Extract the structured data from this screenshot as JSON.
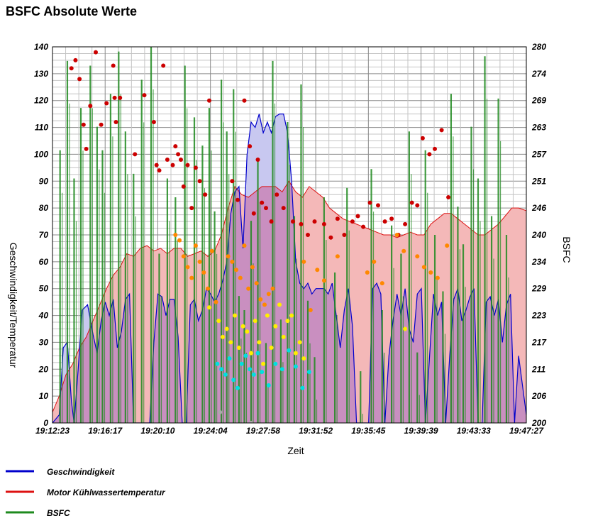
{
  "chart_data": {
    "type": "area",
    "title": "BSFC Absolute Werte",
    "xlabel": "Zeit",
    "ylabel_left": "Geschwindigkeit/Temperatur",
    "ylabel_right": "BSFC",
    "x_ticks": [
      "19:12:23",
      "19:16:17",
      "19:20:10",
      "19:24:04",
      "19:27:58",
      "19:31:52",
      "19:35:45",
      "19:39:39",
      "19:43:33",
      "19:47:27"
    ],
    "y_left_ticks": [
      "0",
      "10",
      "20",
      "30",
      "40",
      "50",
      "60",
      "70",
      "80",
      "90",
      "100",
      "110",
      "120",
      "130",
      "140"
    ],
    "y_right_ticks": [
      "200",
      "206",
      "211",
      "217",
      "223",
      "229",
      "234",
      "240",
      "246",
      "251",
      "257",
      "263",
      "269",
      "274",
      "280"
    ],
    "ylim_left": [
      0,
      140
    ],
    "ylim_right": [
      200,
      280
    ],
    "grid": true,
    "legend_position": "bottom-left",
    "colors": {
      "speed": "#0000cc",
      "speed_fill": "#c8c8f0",
      "coolant": "#dd1111",
      "coolant_fill": "#f4b8b8",
      "overlap_fill": "#c98fc0",
      "bsfc": "#1e8a1e",
      "pt_red": "#cc0000",
      "pt_orange": "#ff8800",
      "pt_yellow": "#ffee00",
      "pt_cyan": "#00e0e0"
    },
    "series": [
      {
        "name": "Geschwindigkeit",
        "x_minutes": [
          0,
          0.5,
          0.8,
          1.1,
          1.4,
          1.6,
          1.9,
          2.2,
          2.6,
          3.0,
          3.3,
          3.6,
          3.9,
          4.2,
          4.5,
          4.8,
          5.1,
          5.4,
          5.7,
          6.0,
          6.3,
          6.6,
          6.9,
          7.2,
          7.5,
          7.8,
          8.1,
          8.4,
          8.7,
          9.0,
          9.3,
          9.6,
          9.9,
          10.2,
          10.5,
          10.8,
          11.1,
          11.4,
          11.7,
          12.0,
          12.3,
          12.6,
          12.9,
          13.2,
          13.5,
          13.8,
          14.1,
          14.4,
          14.7,
          15.0,
          15.3,
          15.6,
          15.9,
          16.2,
          16.5,
          16.8,
          17.1,
          17.4,
          17.7,
          18.0,
          18.3,
          18.6,
          18.9,
          19.2,
          19.5,
          19.8,
          20.1,
          20.4,
          20.7,
          21.0,
          21.3,
          21.6,
          21.9,
          22.2,
          22.5,
          22.8,
          23.1,
          23.4,
          23.7,
          24.0,
          24.3,
          24.6,
          24.9,
          25.2,
          25.5,
          25.8,
          26.1,
          26.4,
          26.7,
          27.0,
          27.3,
          27.6,
          27.9,
          28.2,
          28.5,
          28.8,
          29.1,
          29.4,
          29.7,
          30.0,
          30.3,
          30.6,
          30.9,
          31.2,
          31.5,
          31.8,
          32.1,
          32.4,
          32.7,
          33.0,
          33.3,
          33.6,
          33.9,
          34.2,
          34.5,
          35.07
        ],
        "values": [
          0,
          3,
          28,
          30,
          8,
          0,
          20,
          42,
          44,
          33,
          26,
          38,
          45,
          40,
          46,
          28,
          34,
          46,
          48,
          0,
          0,
          0,
          0,
          0,
          30,
          48,
          47,
          40,
          46,
          46,
          32,
          0,
          0,
          44,
          46,
          38,
          42,
          50,
          48,
          45,
          48,
          53,
          60,
          78,
          86,
          88,
          65,
          100,
          112,
          110,
          115,
          108,
          112,
          108,
          114,
          115,
          115,
          108,
          90,
          60,
          52,
          50,
          52,
          48,
          50,
          50,
          50,
          48,
          52,
          40,
          28,
          42,
          50,
          36,
          0,
          0,
          0,
          0,
          50,
          52,
          48,
          0,
          25,
          38,
          48,
          40,
          50,
          35,
          30,
          48,
          50,
          0,
          24,
          48,
          40,
          45,
          0,
          25,
          46,
          50,
          38,
          42,
          47,
          50,
          0,
          0,
          45,
          47,
          40,
          46,
          30,
          44,
          48,
          0,
          25,
          3
        ]
      },
      {
        "name": "Motor Kühlwassertemperatur",
        "x_minutes": [
          0,
          0.5,
          1.0,
          1.5,
          2.0,
          2.5,
          3.0,
          3.5,
          4.0,
          4.5,
          5.0,
          5.5,
          6.0,
          6.5,
          7.0,
          7.5,
          8.0,
          8.5,
          9.0,
          9.5,
          10.0,
          10.5,
          11.0,
          11.5,
          12.0,
          12.5,
          13.0,
          13.5,
          14.0,
          14.5,
          15.0,
          15.5,
          16.0,
          16.5,
          17.0,
          17.5,
          18.0,
          18.5,
          19.0,
          19.5,
          20.0,
          20.5,
          21.0,
          21.5,
          22.0,
          22.5,
          23.0,
          23.5,
          24.0,
          24.5,
          25.0,
          25.5,
          26.0,
          26.5,
          27.0,
          27.5,
          28.0,
          28.5,
          29.0,
          29.5,
          30.0,
          30.5,
          31.0,
          31.5,
          32.0,
          32.5,
          33.0,
          33.5,
          34.0,
          34.5,
          35.07
        ],
        "values": [
          4,
          10,
          18,
          22,
          28,
          32,
          38,
          44,
          50,
          55,
          58,
          63,
          62,
          65,
          66,
          64,
          65,
          63,
          65,
          65,
          62,
          63,
          64,
          62,
          64,
          70,
          80,
          88,
          85,
          84,
          86,
          88,
          88,
          88,
          86,
          90,
          86,
          84,
          88,
          86,
          84,
          80,
          78,
          76,
          75,
          74,
          73,
          72,
          71,
          70,
          70,
          69,
          70,
          71,
          70,
          70,
          74,
          76,
          78,
          78,
          76,
          74,
          72,
          70,
          70,
          72,
          74,
          77,
          80,
          80,
          79
        ]
      },
      {
        "name": "BSFC",
        "x_minutes": [
          0.56,
          1.1,
          1.6,
          2.1,
          2.8,
          3.3,
          3.7,
          4.3,
          4.9,
          5.4,
          6.0,
          6.6,
          7.3,
          7.9,
          8.5,
          9.1,
          9.8,
          10.5,
          11.1,
          11.6,
          12.0,
          12.5,
          12.9,
          13.4,
          13.8,
          14.2,
          14.7,
          15.2,
          15.8,
          16.3,
          16.9,
          17.4,
          17.9,
          18.4,
          18.9,
          19.4,
          20.1,
          20.9,
          21.8,
          22.8,
          23.6,
          24.4,
          25.1,
          25.8,
          26.4,
          27.0,
          27.6,
          28.3,
          28.9,
          29.5,
          30.0,
          30.4,
          31.0,
          31.5,
          32.0,
          32.5,
          33.0,
          33.6
        ],
        "values": [
          258,
          277,
          252,
          267,
          276,
          263,
          258,
          270,
          279,
          262,
          253,
          273,
          280,
          236,
          252,
          248,
          276,
          265,
          259,
          267,
          245,
          273,
          262,
          271,
          227,
          224,
          243,
          256,
          217,
          277,
          222,
          264,
          244,
          272,
          226,
          214,
          248,
          232,
          250,
          211,
          254,
          224,
          242,
          236,
          262,
          215,
          258,
          240,
          228,
          270,
          246,
          238,
          263,
          252,
          278,
          244,
          269,
          240
        ]
      }
    ],
    "points": {
      "red": [
        [
          1.4,
          132
        ],
        [
          1.7,
          135
        ],
        [
          2.0,
          128
        ],
        [
          2.3,
          111
        ],
        [
          2.5,
          102
        ],
        [
          2.8,
          118
        ],
        [
          3.2,
          138
        ],
        [
          3.6,
          111
        ],
        [
          4.0,
          119
        ],
        [
          4.5,
          133
        ],
        [
          4.6,
          121
        ],
        [
          4.7,
          112
        ],
        [
          5.0,
          121
        ],
        [
          6.1,
          100
        ],
        [
          6.8,
          122
        ],
        [
          7.5,
          112
        ],
        [
          7.7,
          96
        ],
        [
          7.9,
          94
        ],
        [
          8.2,
          133
        ],
        [
          8.5,
          98
        ],
        [
          8.9,
          96
        ],
        [
          9.1,
          103
        ],
        [
          9.3,
          100
        ],
        [
          9.5,
          98
        ],
        [
          9.7,
          88
        ],
        [
          10.0,
          96
        ],
        [
          10.3,
          80
        ],
        [
          10.6,
          95
        ],
        [
          10.9,
          90
        ],
        [
          11.3,
          85
        ],
        [
          11.6,
          120
        ],
        [
          13.3,
          90
        ],
        [
          13.7,
          83
        ],
        [
          14.2,
          120
        ],
        [
          14.6,
          103
        ],
        [
          14.9,
          78
        ],
        [
          15.2,
          98
        ],
        [
          15.5,
          82
        ],
        [
          15.8,
          80
        ],
        [
          16.2,
          75
        ],
        [
          16.6,
          85
        ],
        [
          17.1,
          80
        ],
        [
          17.8,
          75
        ],
        [
          18.4,
          74
        ],
        [
          18.9,
          70
        ],
        [
          19.4,
          75
        ],
        [
          20.1,
          74
        ],
        [
          20.6,
          69
        ],
        [
          21.1,
          76
        ],
        [
          21.6,
          70
        ],
        [
          22.2,
          75
        ],
        [
          22.6,
          77
        ],
        [
          23.0,
          73
        ],
        [
          23.5,
          82
        ],
        [
          24.1,
          81
        ],
        [
          24.6,
          75
        ],
        [
          25.1,
          76
        ],
        [
          25.6,
          70
        ],
        [
          26.1,
          74
        ],
        [
          26.6,
          82
        ],
        [
          27.0,
          81
        ],
        [
          27.4,
          106
        ],
        [
          27.9,
          100
        ],
        [
          28.3,
          102
        ],
        [
          28.8,
          109
        ],
        [
          29.3,
          84
        ]
      ],
      "orange": [
        [
          9.1,
          70
        ],
        [
          9.4,
          68
        ],
        [
          9.7,
          62
        ],
        [
          10.0,
          58
        ],
        [
          10.3,
          54
        ],
        [
          10.6,
          66
        ],
        [
          10.9,
          60
        ],
        [
          11.2,
          56
        ],
        [
          11.5,
          50
        ],
        [
          11.8,
          64
        ],
        [
          12.1,
          45
        ],
        [
          13.0,
          62
        ],
        [
          13.3,
          60
        ],
        [
          13.6,
          57
        ],
        [
          13.9,
          54
        ],
        [
          14.2,
          66
        ],
        [
          14.5,
          50
        ],
        [
          14.8,
          58
        ],
        [
          15.1,
          52
        ],
        [
          15.4,
          46
        ],
        [
          15.7,
          44
        ],
        [
          16.0,
          48
        ],
        [
          16.3,
          50
        ],
        [
          18.6,
          60
        ],
        [
          19.1,
          42
        ],
        [
          19.6,
          57
        ],
        [
          20.1,
          53
        ],
        [
          21.1,
          62
        ],
        [
          23.3,
          56
        ],
        [
          23.8,
          60
        ],
        [
          24.4,
          52
        ],
        [
          25.5,
          70
        ],
        [
          26.0,
          64
        ],
        [
          27.0,
          62
        ],
        [
          27.5,
          58
        ],
        [
          28.0,
          56
        ],
        [
          28.5,
          54
        ],
        [
          29.2,
          66
        ]
      ],
      "yellow": [
        [
          11.6,
          43
        ],
        [
          12.3,
          38
        ],
        [
          12.6,
          32
        ],
        [
          12.9,
          35
        ],
        [
          13.2,
          30
        ],
        [
          13.5,
          40
        ],
        [
          13.8,
          28
        ],
        [
          14.1,
          36
        ],
        [
          14.4,
          34
        ],
        [
          14.7,
          26
        ],
        [
          15.0,
          38
        ],
        [
          15.3,
          30
        ],
        [
          15.6,
          22
        ],
        [
          15.9,
          40
        ],
        [
          16.2,
          28
        ],
        [
          16.5,
          36
        ],
        [
          16.8,
          44
        ],
        [
          17.1,
          32
        ],
        [
          17.4,
          38
        ],
        [
          17.7,
          40
        ],
        [
          18.0,
          26
        ],
        [
          18.3,
          30
        ],
        [
          18.6,
          24
        ],
        [
          26.1,
          35
        ]
      ],
      "cyan": [
        [
          12.2,
          22
        ],
        [
          12.5,
          20
        ],
        [
          12.8,
          18
        ],
        [
          13.1,
          24
        ],
        [
          13.4,
          16
        ],
        [
          13.7,
          13
        ],
        [
          14.0,
          22
        ],
        [
          14.3,
          25
        ],
        [
          14.6,
          20
        ],
        [
          14.9,
          18
        ],
        [
          15.2,
          26
        ],
        [
          15.5,
          19
        ],
        [
          16.0,
          14
        ],
        [
          16.5,
          22
        ],
        [
          17.0,
          20
        ],
        [
          17.5,
          27
        ],
        [
          18.0,
          21
        ],
        [
          18.5,
          13
        ],
        [
          19.0,
          19
        ]
      ],
      "gray": [
        [
          12.4,
          4
        ],
        [
          14.7,
          0
        ]
      ]
    }
  }
}
